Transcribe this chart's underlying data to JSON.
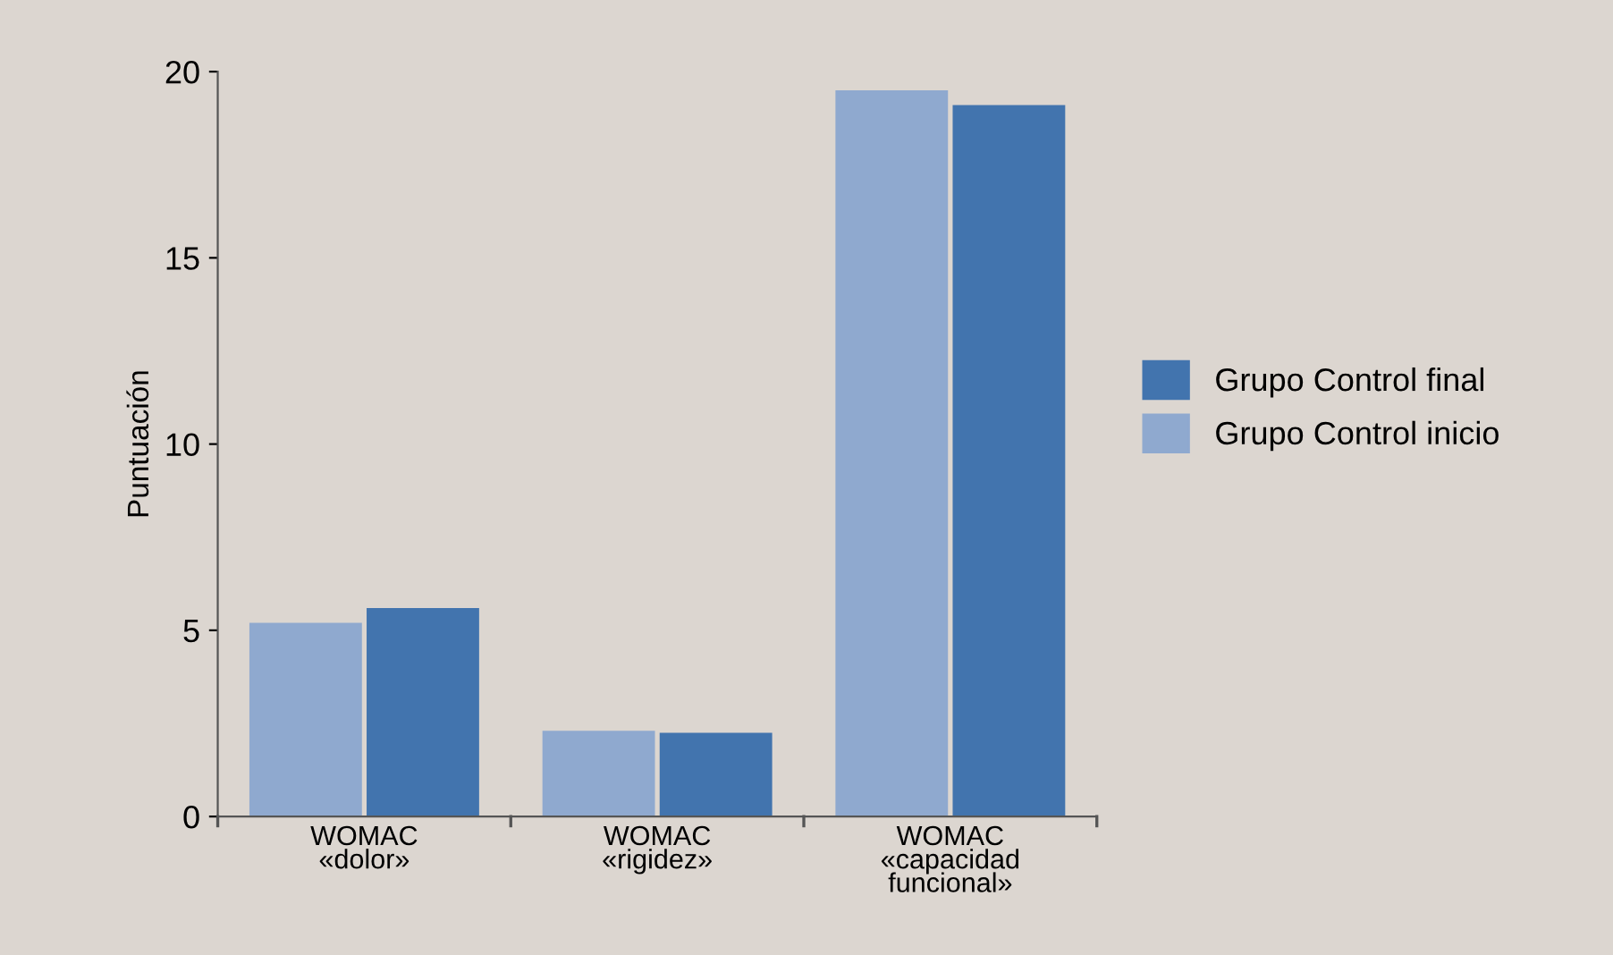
{
  "chart_data": {
    "type": "bar",
    "ylabel": "Puntuación",
    "categories": [
      "WOMAC\n«dolor»",
      "WOMAC\n«rigidez»",
      "WOMAC\n«capacidad\nfuncional»"
    ],
    "series": [
      {
        "name": "Grupo Control inicio",
        "color": "#8fa9cf",
        "values": [
          5.2,
          2.3,
          19.5
        ]
      },
      {
        "name": "Grupo Control final",
        "color": "#4274ae",
        "values": [
          5.6,
          2.25,
          19.1
        ]
      }
    ],
    "ylim": [
      0,
      20
    ],
    "yticks": [
      0,
      5,
      10,
      15,
      20
    ],
    "grid": false,
    "legend": "right"
  }
}
